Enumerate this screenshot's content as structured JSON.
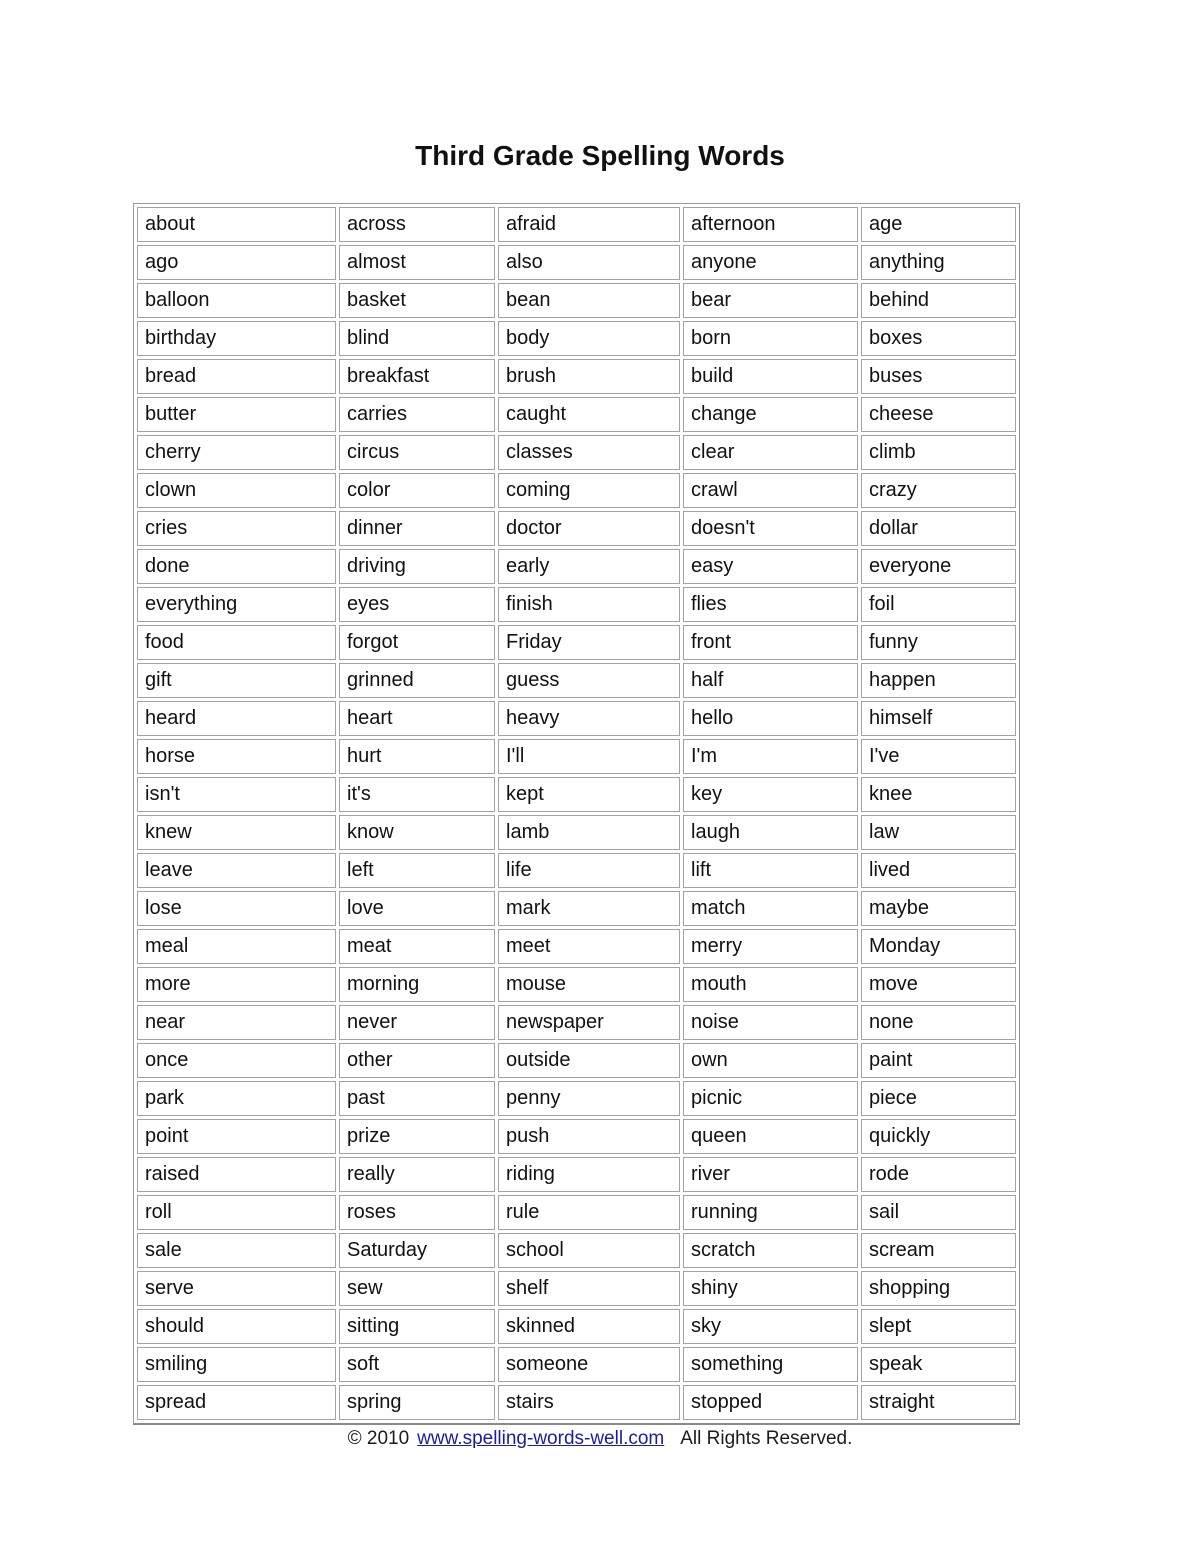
{
  "page": {
    "title": "Third Grade Spelling Words",
    "footer": {
      "copyright": "© 2010",
      "link": "www.spelling-words-well.com",
      "rights": "All Rights Reserved."
    },
    "colors": {
      "text": "#000000",
      "link": "#1c1c9c",
      "table_border": "#9a9a9a"
    }
  },
  "table": {
    "columns": 5,
    "rows": [
      [
        "about",
        "across",
        "afraid",
        "afternoon",
        "age"
      ],
      [
        "ago",
        "almost",
        "also",
        "anyone",
        "anything"
      ],
      [
        "balloon",
        "basket",
        "bean",
        "bear",
        "behind"
      ],
      [
        "birthday",
        "blind",
        "body",
        "born",
        "boxes"
      ],
      [
        "bread",
        "breakfast",
        "brush",
        "build",
        "buses"
      ],
      [
        "butter",
        "carries",
        "caught",
        "change",
        "cheese"
      ],
      [
        "cherry",
        "circus",
        "classes",
        "clear",
        "climb"
      ],
      [
        "clown",
        "color",
        "coming",
        "crawl",
        "crazy"
      ],
      [
        "cries",
        "dinner",
        "doctor",
        "doesn't",
        "dollar"
      ],
      [
        "done",
        "driving",
        "early",
        "easy",
        "everyone"
      ],
      [
        "everything",
        "eyes",
        "finish",
        "flies",
        "foil"
      ],
      [
        "food",
        "forgot",
        "Friday",
        "front",
        "funny"
      ],
      [
        "gift",
        "grinned",
        "guess",
        "half",
        "happen"
      ],
      [
        "heard",
        "heart",
        "heavy",
        "hello",
        "himself"
      ],
      [
        "horse",
        "hurt",
        "I'll",
        "I'm",
        "I've"
      ],
      [
        "isn't",
        "it's",
        "kept",
        "key",
        "knee"
      ],
      [
        "knew",
        "know",
        "lamb",
        "laugh",
        "law"
      ],
      [
        "leave",
        "left",
        "life",
        "lift",
        "lived"
      ],
      [
        "lose",
        "love",
        "mark",
        "match",
        "maybe"
      ],
      [
        "meal",
        "meat",
        "meet",
        "merry",
        "Monday"
      ],
      [
        "more",
        "morning",
        "mouse",
        "mouth",
        "move"
      ],
      [
        "near",
        "never",
        "newspaper",
        "noise",
        "none"
      ],
      [
        "once",
        "other",
        "outside",
        "own",
        "paint"
      ],
      [
        "park",
        "past",
        "penny",
        "picnic",
        "piece"
      ],
      [
        "point",
        "prize",
        "push",
        "queen",
        "quickly"
      ],
      [
        "raised",
        "really",
        "riding",
        "river",
        "rode"
      ],
      [
        "roll",
        "roses",
        "rule",
        "running",
        "sail"
      ],
      [
        "sale",
        "Saturday",
        "school",
        "scratch",
        "scream"
      ],
      [
        "serve",
        "sew",
        "shelf",
        "shiny",
        "shopping"
      ],
      [
        "should",
        "sitting",
        "skinned",
        "sky",
        "slept"
      ],
      [
        "smiling",
        "soft",
        "someone",
        "something",
        "speak"
      ],
      [
        "spread",
        "spring",
        "stairs",
        "stopped",
        "straight"
      ]
    ]
  }
}
